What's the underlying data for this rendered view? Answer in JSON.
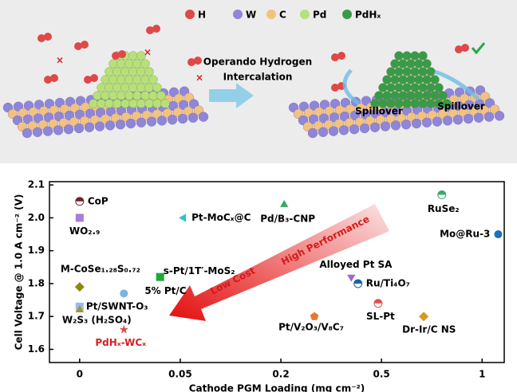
{
  "illustration": {
    "legend": [
      "H",
      "W",
      "C",
      "Pd",
      "PdHₓ"
    ],
    "process": [
      "Operando Hydrogen",
      "Intercalation"
    ],
    "spillover": [
      "Spillover",
      "Spillover"
    ]
  },
  "chart_data": {
    "type": "scatter",
    "xlabel": "Cathode PGM Loading (mg cm⁻²)",
    "ylabel": "Cell Voltage @ 1.0 A cm⁻² (V)",
    "x_scale": "piecewise",
    "xlim": [
      -0.015,
      1.11
    ],
    "xticks": [
      0,
      0.05,
      0.2,
      0.5,
      1
    ],
    "ylim": [
      1.56,
      2.11
    ],
    "yticks": [
      1.6,
      1.7,
      1.8,
      1.9,
      {
        "value": 2,
        "label": "2.0"
      },
      2.1
    ],
    "annotations": [
      "Low Cost",
      "High Performance"
    ],
    "points": [
      {
        "label": "CoP",
        "x": 0,
        "y": 2.05,
        "color": "#7a1f2b",
        "marker": "half-circle"
      },
      {
        "label": "WO₂.₉",
        "x": 0,
        "y": 2.0,
        "color": "#a77dd6",
        "marker": "square"
      },
      {
        "label": "Pt-MoCₓ@C",
        "x": 0.055,
        "y": 2.0,
        "color": "#2bc4c4",
        "marker": "triangle-left"
      },
      {
        "label": "Pd/B₃-CNP",
        "x": 0.21,
        "y": 2.04,
        "color": "#3aa86b",
        "marker": "triangle-up"
      },
      {
        "label": "RuSe₂",
        "x": 0.8,
        "y": 2.07,
        "color": "#3aa86b",
        "marker": "half-circle"
      },
      {
        "label": "Mo@Ru-3",
        "x": 1.08,
        "y": 1.95,
        "color": "#1f6fbf",
        "marker": "circle"
      },
      {
        "label": "M-CoSe₁.₂₈S₀.₇₂",
        "x": 0,
        "y": 1.79,
        "color": "#8a8a10",
        "marker": "diamond"
      },
      {
        "label": "s-Pt/1T′-MoS₂",
        "x": 0.04,
        "y": 1.82,
        "color": "#1fa83a",
        "marker": "square"
      },
      {
        "label": "5% Pt/C",
        "x": 0.022,
        "y": 1.77,
        "color": "#7fb3e0",
        "marker": "circle"
      },
      {
        "label": "Pt/SWNT-O₃",
        "x": 0,
        "y": 1.73,
        "color": "#9fb8e8",
        "marker": "square"
      },
      {
        "label": "W₂S₃ (H₂SO₄)",
        "x": 0,
        "y": 1.72,
        "color": "#9a9a30",
        "marker": "triangle-up"
      },
      {
        "label": "PdHₓ-WCₓ",
        "x": 0.022,
        "y": 1.66,
        "color": "#e04a4a",
        "marker": "star",
        "label_color": "#d62020"
      },
      {
        "label": "Alloyed Pt SA",
        "x": 0.41,
        "y": 1.82,
        "color": "#9b6cd0",
        "marker": "triangle-down"
      },
      {
        "label": "Ru/Ti₄O₇",
        "x": 0.43,
        "y": 1.8,
        "color": "#1f5fa8",
        "marker": "half-circle"
      },
      {
        "label": "Pt/V₂O₃/V₈C₇",
        "x": 0.3,
        "y": 1.7,
        "color": "#e8782a",
        "marker": "pentagon"
      },
      {
        "label": "SL-Pt",
        "x": 0.49,
        "y": 1.74,
        "color": "#e05050",
        "marker": "half-circle"
      },
      {
        "label": "Dr-Ir/C NS",
        "x": 0.71,
        "y": 1.7,
        "color": "#d49a20",
        "marker": "diamond"
      }
    ]
  }
}
